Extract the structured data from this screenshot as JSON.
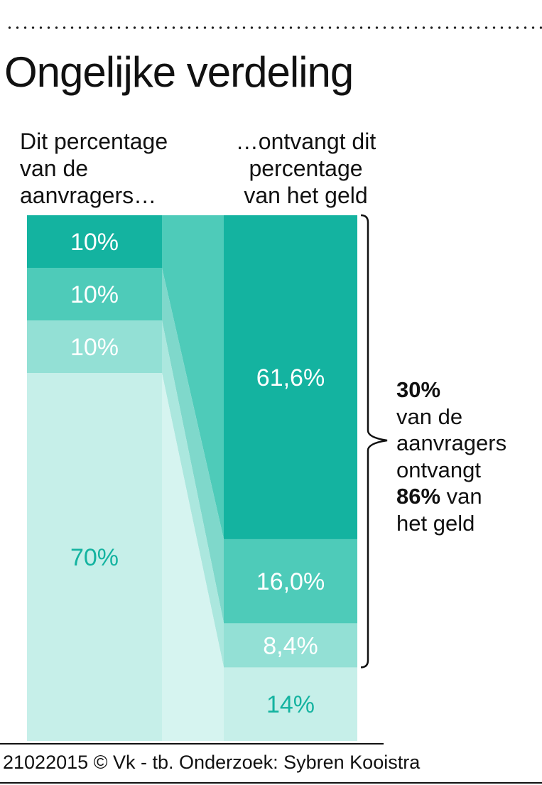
{
  "title": "Ongelijke verdeling",
  "subtitle_left": [
    "Dit percentage",
    "van de",
    "aanvragers…"
  ],
  "subtitle_right": [
    "…ontvangt dit",
    "percentage",
    "van het geld"
  ],
  "annotation": {
    "line1_bold": "30%",
    "line2": "van de",
    "line3": "aanvragers",
    "line4": "ontvangt",
    "line5_bold": "86%",
    "line5_rest": " van",
    "line6": "het geld"
  },
  "footer": "21022015 © Vk - tb. Onderzoek: Sybren Kooistra",
  "colors": {
    "dark": "#14b3a0",
    "medium": "#4ecbb9",
    "light": "#93e0d5",
    "lightest": "#c6efe9",
    "connector_lightest": "#d6f4f0",
    "label_dark_text": "#14b3a0"
  },
  "chart_data": {
    "type": "stacked-bar-flow",
    "title": "Ongelijke verdeling",
    "left_bar": {
      "label": "Dit percentage van de aanvragers…",
      "segments": [
        {
          "value": 10,
          "label": "10%"
        },
        {
          "value": 10,
          "label": "10%"
        },
        {
          "value": 10,
          "label": "10%"
        },
        {
          "value": 70,
          "label": "70%"
        }
      ]
    },
    "right_bar": {
      "label": "…ontvangt dit percentage van het geld",
      "segments": [
        {
          "value": 61.6,
          "label": "61,6%"
        },
        {
          "value": 16.0,
          "label": "16,0%"
        },
        {
          "value": 8.4,
          "label": "8,4%"
        },
        {
          "value": 14,
          "label": "14%"
        }
      ]
    }
  }
}
